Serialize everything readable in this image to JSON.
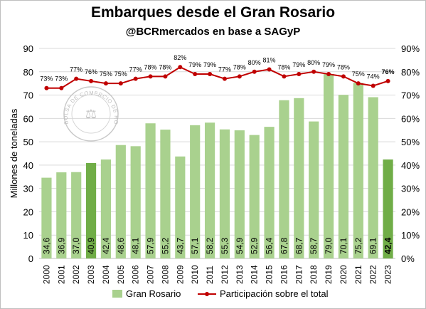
{
  "chart_data": {
    "type": "bar",
    "title": "Embarques desde el Gran Rosario",
    "subtitle": "@BCRmercados en base a SAGyP",
    "ylabel": "Millones de toneladas",
    "ylim": [
      0,
      90
    ],
    "y2lim": [
      0,
      90
    ],
    "y_ticks": [
      "0",
      "10",
      "20",
      "30",
      "40",
      "50",
      "60",
      "70",
      "80",
      "90"
    ],
    "y2_ticks": [
      "0%",
      "10%",
      "20%",
      "30%",
      "40%",
      "50%",
      "60%",
      "70%",
      "80%",
      "90%"
    ],
    "categories": [
      "2000",
      "2001",
      "2002",
      "2003",
      "2004",
      "2005",
      "2006",
      "2007",
      "2008",
      "2009",
      "2010",
      "2011",
      "2012",
      "2013",
      "2014",
      "2015",
      "2016",
      "2017",
      "2018",
      "2019",
      "2020",
      "2021",
      "2022",
      "2023"
    ],
    "series": [
      {
        "name": "Gran Rosario",
        "kind": "bar",
        "color": "#a9d18e",
        "highlight_color": "#70ad47",
        "highlight": [
          "2003",
          "2023"
        ],
        "values": [
          34.6,
          36.9,
          37.0,
          40.9,
          42.4,
          48.6,
          48.1,
          57.9,
          55.2,
          43.7,
          57.1,
          58.2,
          55.3,
          54.9,
          52.9,
          56.4,
          67.8,
          68.7,
          58.7,
          79.0,
          70.1,
          75.2,
          69.1,
          42.4
        ],
        "labels": [
          "34,6",
          "36,9",
          "37,0",
          "40,9",
          "42,4",
          "48,6",
          "48,1",
          "57,9",
          "55,2",
          "43,7",
          "57,1",
          "58,2",
          "55,3",
          "54,9",
          "52,9",
          "56,4",
          "67,8",
          "68,7",
          "58,7",
          "79,0",
          "70,1",
          "75,2",
          "69,1",
          "42,4"
        ]
      },
      {
        "name": "Participación sobre el total",
        "kind": "line",
        "axis": "right",
        "color": "#c00000",
        "values": [
          73,
          73,
          77,
          76,
          75,
          75,
          77,
          78,
          78,
          82,
          79,
          79,
          77,
          78,
          80,
          81,
          78,
          79,
          80,
          79,
          78,
          75,
          74,
          76
        ],
        "labels": [
          "73%",
          "73%",
          "77%",
          "76%",
          "75%",
          "75%",
          "77%",
          "78%",
          "78%",
          "82%",
          "79%",
          "79%",
          "77%",
          "78%",
          "80%",
          "81%",
          "78%",
          "79%",
          "80%",
          "79%",
          "78%",
          "75%",
          "74%",
          "76%"
        ]
      }
    ],
    "grid": true,
    "legend": "bottom",
    "watermark_text": "BOLSA DE COMERCIO DE ROSARIO"
  }
}
